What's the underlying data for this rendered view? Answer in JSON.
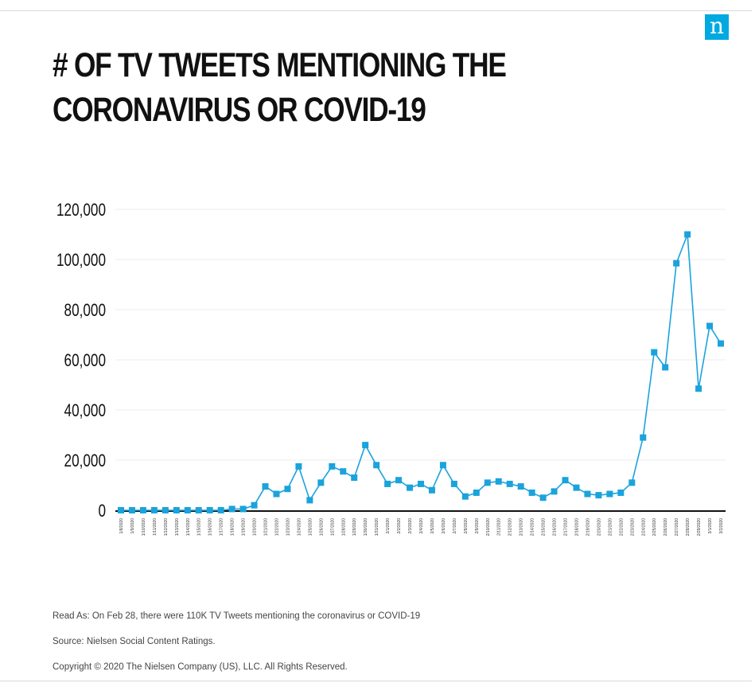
{
  "brand": {
    "logo_text": "n",
    "accent": "#00a9e0"
  },
  "title_lines": [
    "# OF TV TWEETS MENTIONING THE",
    "CORONAVIRUS OR COVID-19"
  ],
  "footer": {
    "read_as": "Read As: On Feb 28, there were 110K TV Tweets mentioning the coronavirus or COVID-19",
    "source": "Source: Nielsen Social Content Ratings.",
    "copyright": "Copyright © 2020 The Nielsen Company (US), LLC. All Rights Reserved."
  },
  "chart_data": {
    "type": "line",
    "title": "# OF TV TWEETS MENTIONING THE CORONAVIRUS OR COVID-19",
    "xlabel": "",
    "ylabel": "",
    "ylim": [
      0,
      120000
    ],
    "yticks": [
      0,
      20000,
      40000,
      60000,
      80000,
      100000,
      120000
    ],
    "ytick_labels": [
      "0",
      "20,000",
      "40,000",
      "60,000",
      "80,000",
      "100,000",
      "120,000"
    ],
    "grid": true,
    "legend": "none",
    "series_color": "#1aa3dc",
    "categories": [
      "1/8/2020",
      "1/9/2020",
      "1/10/2020",
      "1/11/2020",
      "1/12/2020",
      "1/13/2020",
      "1/14/2020",
      "1/15/2020",
      "1/16/2020",
      "1/17/2020",
      "1/18/2020",
      "1/19/2020",
      "1/20/2020",
      "1/21/2020",
      "1/22/2020",
      "1/23/2020",
      "1/24/2020",
      "1/25/2020",
      "1/26/2020",
      "1/27/2020",
      "1/28/2020",
      "1/29/2020",
      "1/30/2020",
      "1/31/2020",
      "2/1/2020",
      "2/2/2020",
      "2/3/2020",
      "2/4/2020",
      "2/5/2020",
      "2/6/2020",
      "2/7/2020",
      "2/8/2020",
      "2/9/2020",
      "2/10/2020",
      "2/11/2020",
      "2/12/2020",
      "2/13/2020",
      "2/14/2020",
      "2/15/2020",
      "2/16/2020",
      "2/17/2020",
      "2/18/2020",
      "2/19/2020",
      "2/20/2020",
      "2/21/2020",
      "2/22/2020",
      "2/23/2020",
      "2/24/2020",
      "2/25/2020",
      "2/26/2020",
      "2/27/2020",
      "2/28/2020",
      "2/29/2020",
      "3/1/2020",
      "3/2/2020"
    ],
    "series": [
      {
        "values": [
          0,
          0,
          0,
          0,
          0,
          0,
          0,
          0,
          0,
          0,
          500,
          500,
          2000,
          9500,
          6500,
          8500,
          17500,
          4000,
          11000,
          17500,
          15500,
          13000,
          26000,
          18000,
          10500,
          12000,
          9000,
          10500,
          8000,
          18000,
          10500,
          5500,
          7000,
          11000,
          11500,
          10500,
          9500,
          7000,
          5000,
          7500,
          12000,
          9000,
          6500,
          6000,
          6500,
          7000,
          11000,
          29000,
          63000,
          57000,
          98500,
          110000,
          48500,
          73500,
          66500
        ]
      }
    ]
  }
}
